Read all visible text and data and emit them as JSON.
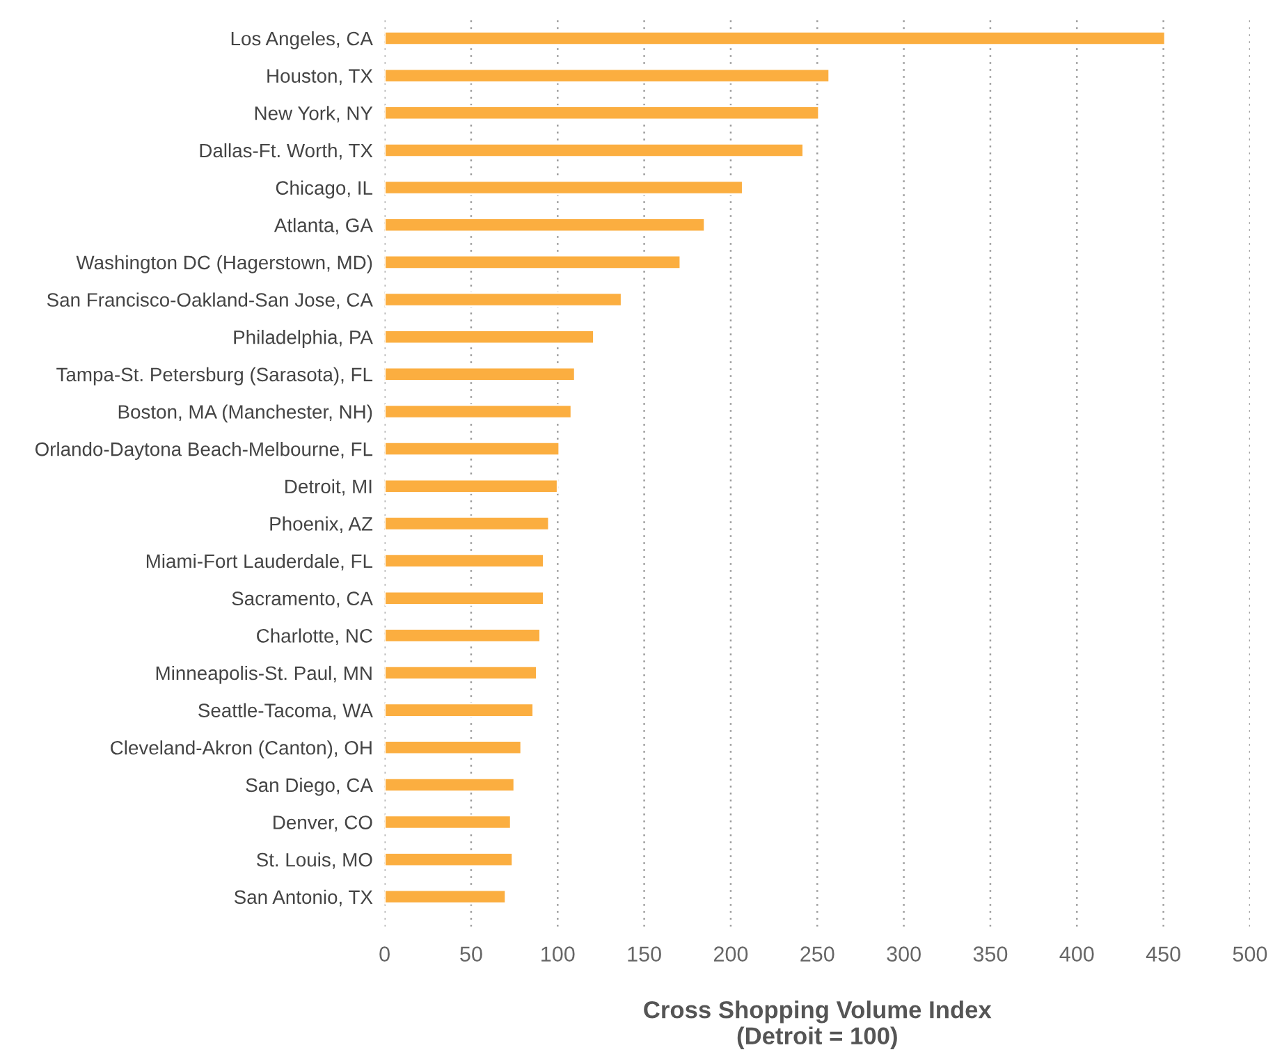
{
  "chart_data": {
    "type": "bar",
    "orientation": "horizontal",
    "categories": [
      "Los Angeles, CA",
      "Houston, TX",
      "New York, NY",
      "Dallas-Ft. Worth, TX",
      "Chicago, IL",
      "Atlanta, GA",
      "Washington DC (Hagerstown, MD)",
      "San Francisco-Oakland-San Jose, CA",
      "Philadelphia, PA",
      "Tampa-St. Petersburg (Sarasota), FL",
      "Boston, MA (Manchester, NH)",
      "Orlando-Daytona Beach-Melbourne, FL",
      "Detroit, MI",
      "Phoenix, AZ",
      "Miami-Fort Lauderdale, FL",
      "Sacramento, CA",
      "Charlotte, NC",
      "Minneapolis-St. Paul, MN",
      "Seattle-Tacoma, WA",
      "Cleveland-Akron (Canton), OH",
      "San Diego, CA",
      "Denver, CO",
      "St. Louis, MO",
      "San Antonio, TX"
    ],
    "values": [
      451,
      257,
      251,
      242,
      207,
      185,
      171,
      137,
      121,
      110,
      108,
      101,
      100,
      95,
      92,
      92,
      90,
      88,
      86,
      79,
      75,
      73,
      74,
      70
    ],
    "color": "#fbae40",
    "xlim": [
      0,
      500
    ],
    "xticks": [
      0,
      50,
      100,
      150,
      200,
      250,
      300,
      350,
      400,
      450,
      500
    ],
    "xlabel": "Cross Shopping Volume Index\n(Detroit = 100)",
    "grid": "x",
    "legend": false
  }
}
